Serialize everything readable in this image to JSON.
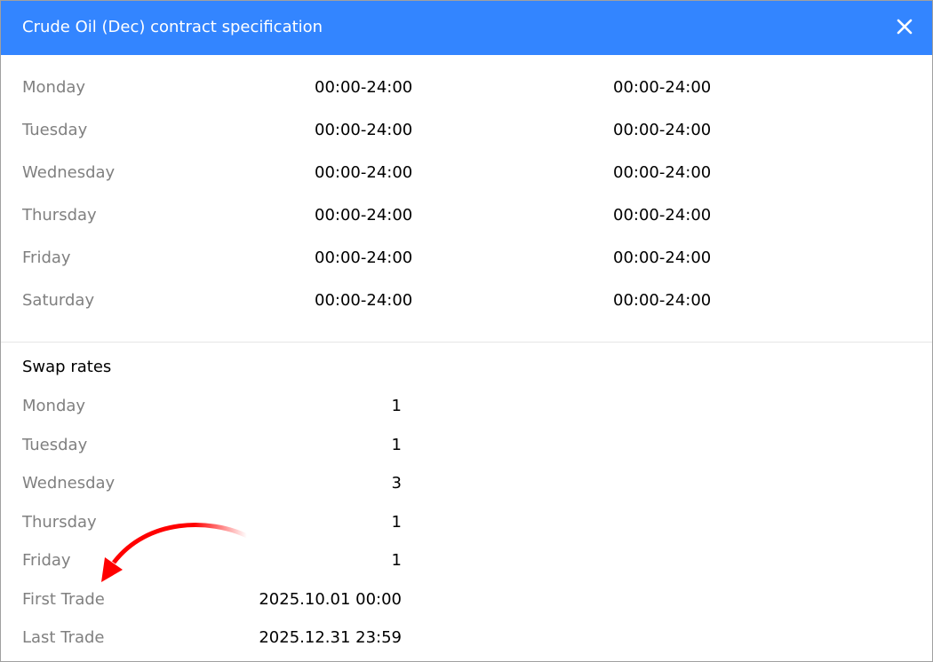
{
  "dialog": {
    "title": "Crude Oil (Dec) contract specification",
    "close_icon": "close-icon"
  },
  "sessions": [
    {
      "day": "Monday",
      "quotes": "00:00-24:00",
      "trades": "00:00-24:00"
    },
    {
      "day": "Tuesday",
      "quotes": "00:00-24:00",
      "trades": "00:00-24:00"
    },
    {
      "day": "Wednesday",
      "quotes": "00:00-24:00",
      "trades": "00:00-24:00"
    },
    {
      "day": "Thursday",
      "quotes": "00:00-24:00",
      "trades": "00:00-24:00"
    },
    {
      "day": "Friday",
      "quotes": "00:00-24:00",
      "trades": "00:00-24:00"
    },
    {
      "day": "Saturday",
      "quotes": "00:00-24:00",
      "trades": "00:00-24:00"
    }
  ],
  "swap": {
    "heading": "Swap rates",
    "rows": [
      {
        "label": "Monday",
        "value": "1"
      },
      {
        "label": "Tuesday",
        "value": "1"
      },
      {
        "label": "Wednesday",
        "value": "3"
      },
      {
        "label": "Thursday",
        "value": "1"
      },
      {
        "label": "Friday",
        "value": "1"
      },
      {
        "label": "First Trade",
        "value": "2025.10.01 00:00"
      },
      {
        "label": "Last Trade",
        "value": "2025.12.31 23:59"
      }
    ]
  },
  "colors": {
    "titlebar": "#3385ff",
    "annotation_arrow": "#ff0000"
  }
}
